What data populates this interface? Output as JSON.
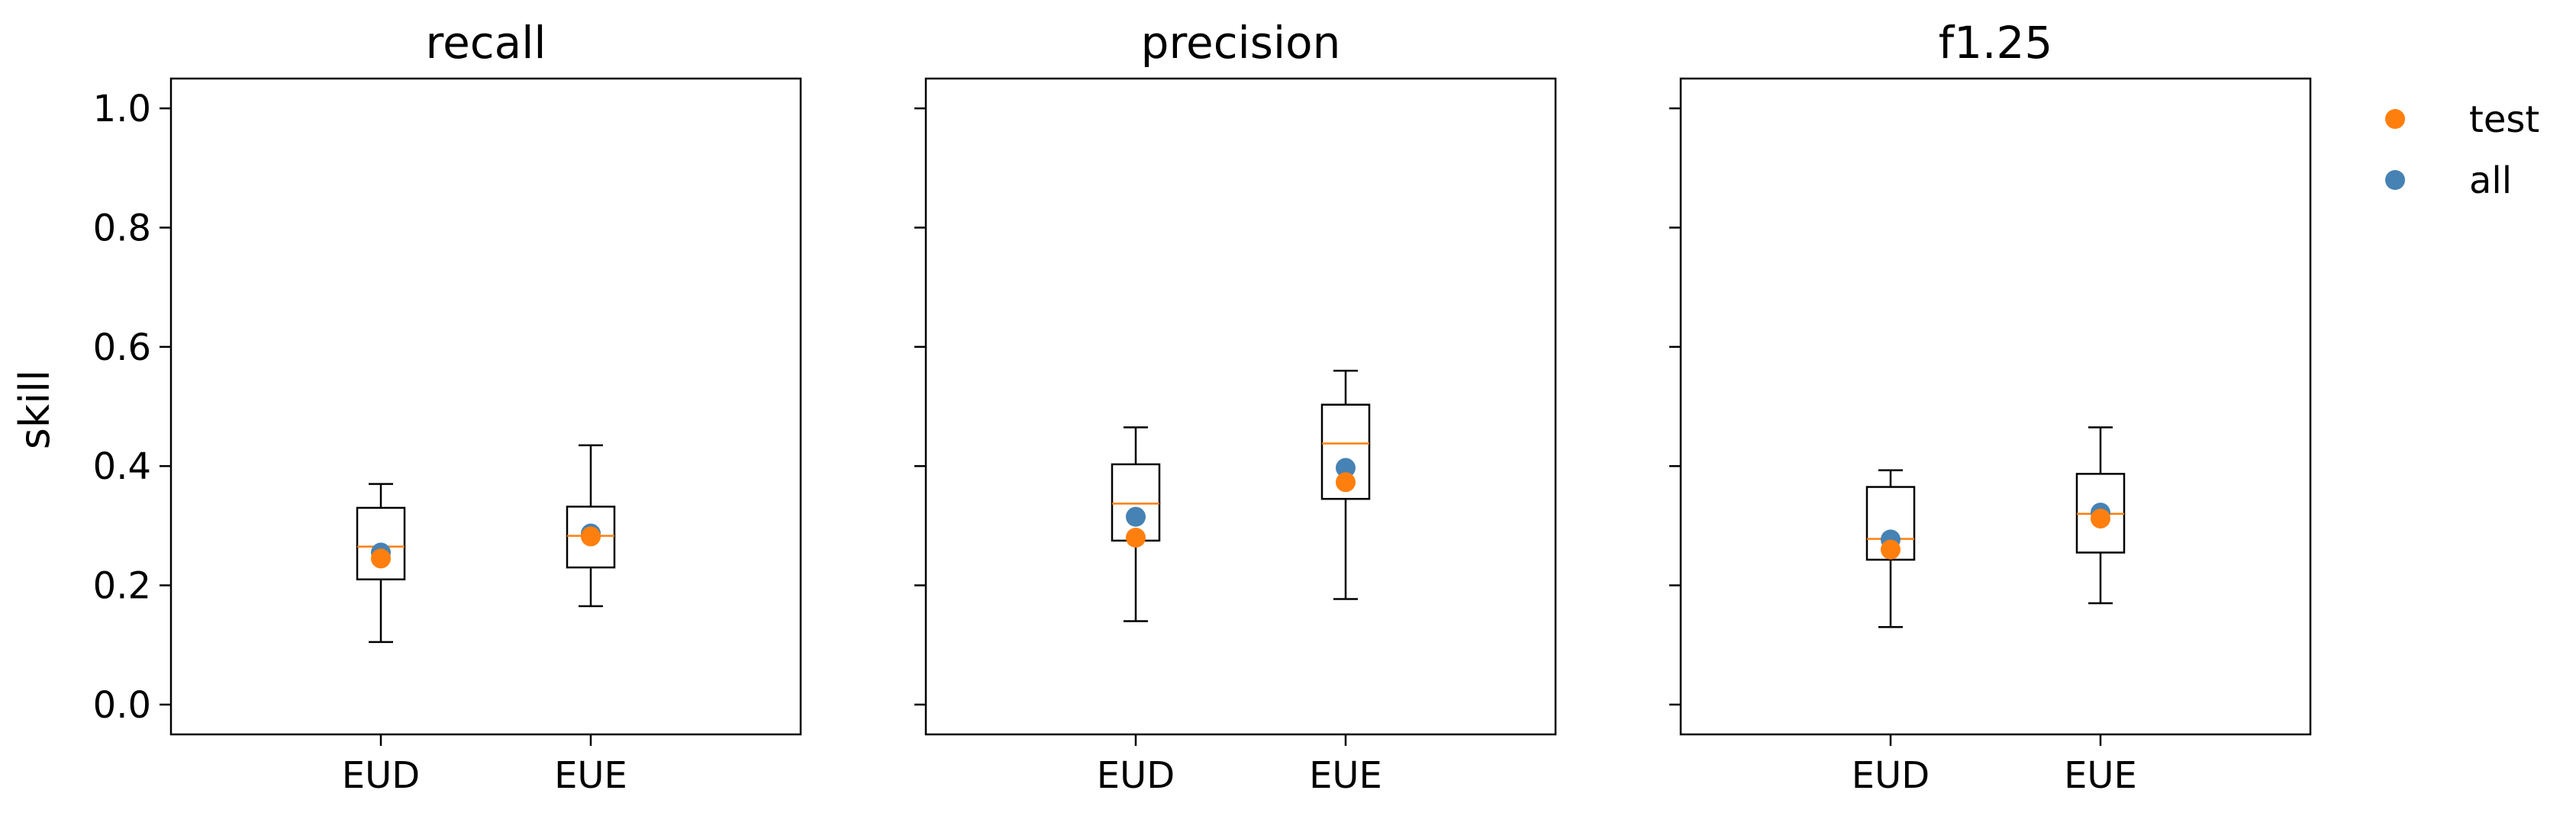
{
  "figure": {
    "ylabel": "skill"
  },
  "legend": {
    "placement": "right",
    "entries": [
      {
        "label": "test",
        "color": "#ff7f0e"
      },
      {
        "label": "all",
        "color": "#4682b4"
      }
    ]
  },
  "colors": {
    "box_edge": "#000000",
    "median": "#ff7f0e",
    "test_marker": "#ff7f0e",
    "all_marker": "#4682b4"
  },
  "chart_data": [
    {
      "type": "box",
      "title": "recall",
      "xlabel": "",
      "ylabel": "skill",
      "ylim": [
        -0.05,
        1.05
      ],
      "yticks": [
        "0.0",
        "0.2",
        "0.4",
        "0.6",
        "0.8",
        "1.0"
      ],
      "categories": [
        "EUD",
        "EUE"
      ],
      "boxes": [
        {
          "whisker_low": 0.105,
          "q1": 0.21,
          "median": 0.265,
          "q3": 0.33,
          "whisker_high": 0.37
        },
        {
          "whisker_low": 0.165,
          "q1": 0.23,
          "median": 0.283,
          "q3": 0.332,
          "whisker_high": 0.435
        }
      ],
      "series": [
        {
          "name": "all",
          "values": [
            0.255,
            0.287
          ]
        },
        {
          "name": "test",
          "values": [
            0.245,
            0.282
          ]
        }
      ]
    },
    {
      "type": "box",
      "title": "precision",
      "xlabel": "",
      "ylabel": "",
      "ylim": [
        -0.05,
        1.05
      ],
      "yticks": [
        "0.0",
        "0.2",
        "0.4",
        "0.6",
        "0.8",
        "1.0"
      ],
      "categories": [
        "EUD",
        "EUE"
      ],
      "boxes": [
        {
          "whisker_low": 0.14,
          "q1": 0.275,
          "median": 0.337,
          "q3": 0.403,
          "whisker_high": 0.465
        },
        {
          "whisker_low": 0.177,
          "q1": 0.345,
          "median": 0.438,
          "q3": 0.503,
          "whisker_high": 0.56
        }
      ],
      "series": [
        {
          "name": "all",
          "values": [
            0.315,
            0.397
          ]
        },
        {
          "name": "test",
          "values": [
            0.28,
            0.373
          ]
        }
      ]
    },
    {
      "type": "box",
      "title": "f1.25",
      "xlabel": "",
      "ylabel": "",
      "ylim": [
        -0.05,
        1.05
      ],
      "yticks": [
        "0.0",
        "0.2",
        "0.4",
        "0.6",
        "0.8",
        "1.0"
      ],
      "categories": [
        "EUD",
        "EUE"
      ],
      "boxes": [
        {
          "whisker_low": 0.13,
          "q1": 0.243,
          "median": 0.278,
          "q3": 0.365,
          "whisker_high": 0.393
        },
        {
          "whisker_low": 0.17,
          "q1": 0.255,
          "median": 0.32,
          "q3": 0.387,
          "whisker_high": 0.465
        }
      ],
      "series": [
        {
          "name": "all",
          "values": [
            0.277,
            0.322
          ]
        },
        {
          "name": "test",
          "values": [
            0.26,
            0.312
          ]
        }
      ]
    }
  ]
}
